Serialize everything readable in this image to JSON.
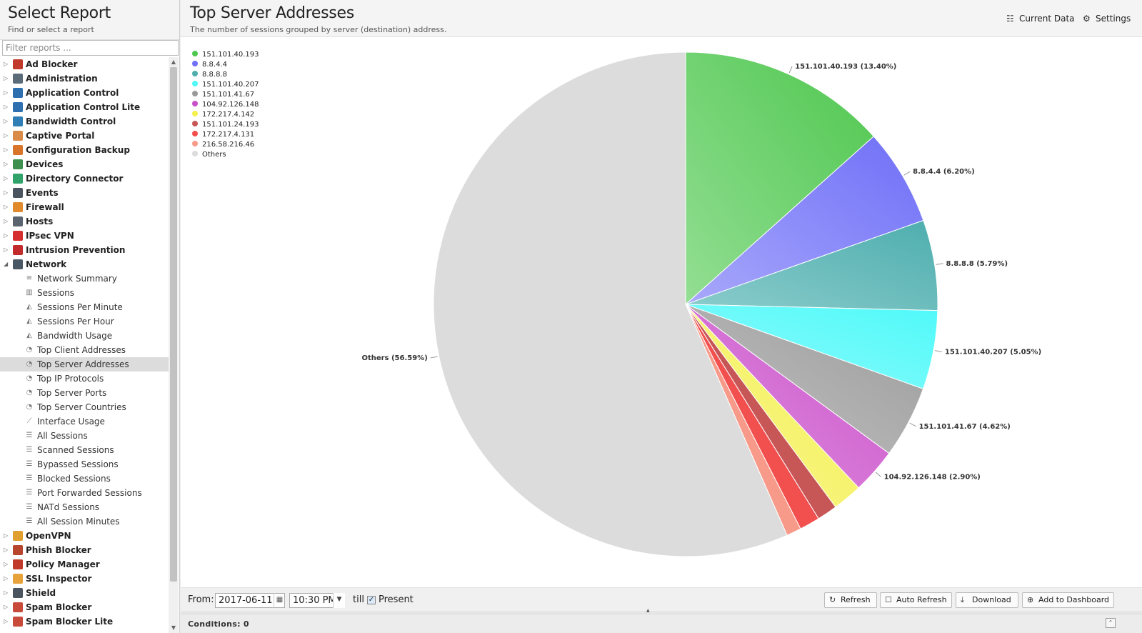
{
  "sidebar": {
    "title": "Select Report",
    "subtitle": "Find or select a report",
    "filter_placeholder": "Filter reports ...",
    "categories_before": [
      {
        "label": "Ad Blocker",
        "color": "#c0392b"
      },
      {
        "label": "Administration",
        "color": "#5b6b7a"
      },
      {
        "label": "Application Control",
        "color": "#2e6fb0"
      },
      {
        "label": "Application Control Lite",
        "color": "#2e6fb0"
      },
      {
        "label": "Bandwidth Control",
        "color": "#2f7fb6"
      },
      {
        "label": "Captive Portal",
        "color": "#d98c4a"
      },
      {
        "label": "Configuration Backup",
        "color": "#d9742b"
      },
      {
        "label": "Devices",
        "color": "#3f8f4f"
      },
      {
        "label": "Directory Connector",
        "color": "#2fa36a"
      },
      {
        "label": "Events",
        "color": "#4a5560"
      },
      {
        "label": "Firewall",
        "color": "#e08a2c"
      },
      {
        "label": "Hosts",
        "color": "#5a6470"
      },
      {
        "label": "IPsec VPN",
        "color": "#d62f2f"
      },
      {
        "label": "Intrusion Prevention",
        "color": "#c22b2b"
      }
    ],
    "network": {
      "label": "Network",
      "color": "#4a5866",
      "items": [
        {
          "label": "Network Summary",
          "icon": "≡"
        },
        {
          "label": "Sessions",
          "icon": "▥"
        },
        {
          "label": "Sessions Per Minute",
          "icon": "◭"
        },
        {
          "label": "Sessions Per Hour",
          "icon": "◭"
        },
        {
          "label": "Bandwidth Usage",
          "icon": "◭"
        },
        {
          "label": "Top Client Addresses",
          "icon": "◔"
        },
        {
          "label": "Top Server Addresses",
          "icon": "◔",
          "selected": true
        },
        {
          "label": "Top IP Protocols",
          "icon": "◔"
        },
        {
          "label": "Top Server Ports",
          "icon": "◔"
        },
        {
          "label": "Top Server Countries",
          "icon": "◔"
        },
        {
          "label": "Interface Usage",
          "icon": "⟋"
        },
        {
          "label": "All Sessions",
          "icon": "☰"
        },
        {
          "label": "Scanned Sessions",
          "icon": "☰"
        },
        {
          "label": "Bypassed Sessions",
          "icon": "☰"
        },
        {
          "label": "Blocked Sessions",
          "icon": "☰"
        },
        {
          "label": "Port Forwarded Sessions",
          "icon": "☰"
        },
        {
          "label": "NATd Sessions",
          "icon": "☰"
        },
        {
          "label": "All Session Minutes",
          "icon": "☰"
        }
      ]
    },
    "categories_after": [
      {
        "label": "OpenVPN",
        "color": "#e0a030"
      },
      {
        "label": "Phish Blocker",
        "color": "#b8452e"
      },
      {
        "label": "Policy Manager",
        "color": "#c0392b"
      },
      {
        "label": "SSL Inspector",
        "color": "#e8a23a"
      },
      {
        "label": "Shield",
        "color": "#4a5560"
      },
      {
        "label": "Spam Blocker",
        "color": "#c84a3a"
      },
      {
        "label": "Spam Blocker Lite",
        "color": "#c84a3a"
      }
    ]
  },
  "header": {
    "title": "Top Server Addresses",
    "subtitle": "The number of sessions grouped by server (destination) address.",
    "current_data_label": "Current Data",
    "settings_label": "Settings"
  },
  "toolbar": {
    "from_label": "From:",
    "date_value": "2017-06-11",
    "time_value": "10:30 PM",
    "till_label": "till",
    "present_label": "Present",
    "present_checked": true,
    "refresh_label": "Refresh",
    "auto_refresh_label": "Auto Refresh",
    "download_label": "Download",
    "add_dashboard_label": "Add to Dashboard"
  },
  "conditions": {
    "label": "Conditions: 0"
  },
  "chart_data": {
    "type": "pie",
    "series": [
      {
        "name": "151.101.40.193",
        "value": 13.4,
        "color": "#4fc74f",
        "light": "#93de93",
        "label": "151.101.40.193 (13.40%)"
      },
      {
        "name": "8.8.4.4",
        "value": 6.2,
        "color": "#6f6ff8",
        "light": "#a8a8fb",
        "label": "8.8.4.4 (6.20%)"
      },
      {
        "name": "8.8.8.8",
        "value": 5.79,
        "color": "#4eaeae",
        "light": "#8ccccc",
        "label": "8.8.8.8 (5.79%)"
      },
      {
        "name": "151.101.40.207",
        "value": 5.05,
        "color": "#4ff9f9",
        "light": "#8ffbfb",
        "label": "151.101.40.207 (5.05%)"
      },
      {
        "name": "151.101.41.67",
        "value": 4.62,
        "color": "#9a9a9a",
        "light": "#c3c3c3",
        "label": "151.101.41.67 (4.62%)"
      },
      {
        "name": "104.92.126.148",
        "value": 2.9,
        "color": "#c94fc9",
        "light": "#e193e1",
        "label": "104.92.126.148 (2.90%)"
      },
      {
        "name": "172.217.4.142",
        "value": 1.9,
        "color": "#f4f04f",
        "light": "#f9f694",
        "label": ""
      },
      {
        "name": "151.101.24.193",
        "value": 1.3,
        "color": "#c75656",
        "label": ""
      },
      {
        "name": "172.217.4.131",
        "value": 1.3,
        "color": "#f24f4f",
        "label": ""
      },
      {
        "name": "216.58.216.46",
        "value": 0.95,
        "color": "#f79a8a",
        "label": ""
      },
      {
        "name": "Others",
        "value": 56.59,
        "color": "#dcdcdc",
        "label": "Others (56.59%)"
      }
    ]
  }
}
